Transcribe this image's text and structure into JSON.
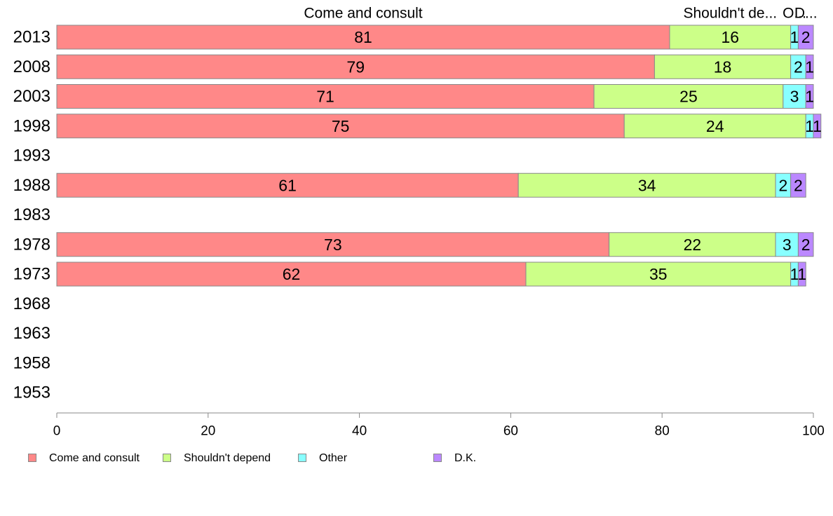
{
  "chart_data": {
    "type": "bar",
    "orientation": "horizontal",
    "stacked": true,
    "categories": [
      "2013",
      "2008",
      "2003",
      "1998",
      "1993",
      "1988",
      "1983",
      "1978",
      "1973",
      "1968",
      "1963",
      "1958",
      "1953"
    ],
    "series": [
      {
        "name": "Come and consult",
        "short_label": "Come and consult",
        "color": "#ff8888",
        "values": [
          81,
          79,
          71,
          75,
          null,
          61,
          null,
          73,
          62,
          null,
          null,
          null,
          null
        ]
      },
      {
        "name": "Shouldn't depend",
        "short_label": "Shouldn't de...",
        "color": "#ccff88",
        "values": [
          16,
          18,
          25,
          24,
          null,
          34,
          null,
          22,
          35,
          null,
          null,
          null,
          null
        ]
      },
      {
        "name": "Other",
        "short_label": "O...",
        "color": "#88ffff",
        "values": [
          1,
          2,
          3,
          1,
          null,
          2,
          null,
          3,
          1,
          null,
          null,
          null,
          null
        ]
      },
      {
        "name": "D.K.",
        "short_label": "D...",
        "color": "#bb88ff",
        "values": [
          2,
          1,
          1,
          1,
          null,
          2,
          null,
          2,
          1,
          null,
          null,
          null,
          null
        ]
      }
    ],
    "xlim": [
      0,
      100
    ],
    "xticks": [
      0,
      20,
      40,
      60,
      80,
      100
    ],
    "grid": false,
    "legend_position": "bottom"
  }
}
